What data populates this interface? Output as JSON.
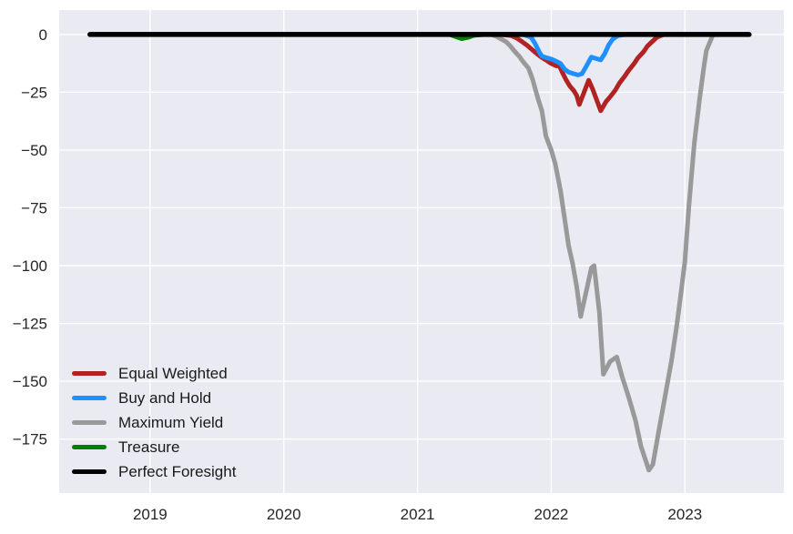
{
  "chart_data": {
    "type": "line",
    "title": "",
    "xlabel": "",
    "ylabel": "",
    "grid": true,
    "plot_bg_color": "#eaeaf2",
    "grid_color": "#ffffff",
    "tick_color": "#262626",
    "xlim": [
      2018.32,
      2023.74
    ],
    "ylim": [
      -198.4,
      10.6
    ],
    "x_ticks": {
      "values": [
        2019,
        2020,
        2021,
        2022,
        2023
      ],
      "labels": [
        "2019",
        "2020",
        "2021",
        "2022",
        "2023"
      ]
    },
    "y_ticks": {
      "values": [
        0,
        -25,
        -50,
        -75,
        -100,
        -125,
        -150,
        -175
      ],
      "labels": [
        "0",
        "−25",
        "−50",
        "−75",
        "−100",
        "−125",
        "−150",
        "−175"
      ]
    },
    "legend": {
      "position": "lower left",
      "entries": [
        "Equal Weighted",
        "Buy and Hold",
        "Maximum Yield",
        "Treasure",
        "Perfect Foresight"
      ]
    },
    "series": [
      {
        "name": "Equal Weighted",
        "color": "#b22222",
        "line_width": 5,
        "points": [
          [
            2018.55,
            0
          ],
          [
            2021.62,
            0
          ],
          [
            2021.7,
            -0.5
          ],
          [
            2021.74,
            -1.5
          ],
          [
            2021.78,
            -3
          ],
          [
            2021.82,
            -4.7
          ],
          [
            2021.86,
            -6.7
          ],
          [
            2021.9,
            -8.7
          ],
          [
            2021.93,
            -10
          ],
          [
            2021.97,
            -11.4
          ],
          [
            2022.0,
            -12.6
          ],
          [
            2022.04,
            -13.6
          ],
          [
            2022.06,
            -13.4
          ],
          [
            2022.08,
            -16
          ],
          [
            2022.11,
            -19.5
          ],
          [
            2022.14,
            -22.4
          ],
          [
            2022.17,
            -24.4
          ],
          [
            2022.19,
            -26.4
          ],
          [
            2022.21,
            -30.3
          ],
          [
            2022.28,
            -19.8
          ],
          [
            2022.31,
            -23.7
          ],
          [
            2022.37,
            -33
          ],
          [
            2022.41,
            -29
          ],
          [
            2022.44,
            -27
          ],
          [
            2022.48,
            -24
          ],
          [
            2022.51,
            -21
          ],
          [
            2022.55,
            -18
          ],
          [
            2022.58,
            -15.5
          ],
          [
            2022.62,
            -12.6
          ],
          [
            2022.65,
            -10
          ],
          [
            2022.69,
            -7.5
          ],
          [
            2022.72,
            -5
          ],
          [
            2022.76,
            -2.8
          ],
          [
            2022.79,
            -1.2
          ],
          [
            2022.84,
            0
          ],
          [
            2023.48,
            0
          ]
        ]
      },
      {
        "name": "Buy and Hold",
        "color": "#1e90ff",
        "line_width": 5,
        "points": [
          [
            2018.55,
            0
          ],
          [
            2021.79,
            0
          ],
          [
            2021.85,
            -1.2
          ],
          [
            2021.88,
            -4
          ],
          [
            2021.91,
            -7.5
          ],
          [
            2021.93,
            -9.4
          ],
          [
            2021.96,
            -10
          ],
          [
            2022.0,
            -10.6
          ],
          [
            2022.03,
            -11.4
          ],
          [
            2022.07,
            -12.6
          ],
          [
            2022.1,
            -15
          ],
          [
            2022.13,
            -16.3
          ],
          [
            2022.17,
            -17
          ],
          [
            2022.2,
            -17.5
          ],
          [
            2022.23,
            -17
          ],
          [
            2022.26,
            -14
          ],
          [
            2022.3,
            -9.8
          ],
          [
            2022.33,
            -10.3
          ],
          [
            2022.37,
            -11
          ],
          [
            2022.4,
            -8.3
          ],
          [
            2022.43,
            -4.5
          ],
          [
            2022.46,
            -2
          ],
          [
            2022.5,
            -0.5
          ],
          [
            2022.55,
            0
          ],
          [
            2023.48,
            0
          ]
        ]
      },
      {
        "name": "Maximum Yield",
        "color": "#999999",
        "line_width": 5,
        "points": [
          [
            2018.55,
            0
          ],
          [
            2021.55,
            0
          ],
          [
            2021.59,
            -0.8
          ],
          [
            2021.62,
            -1.8
          ],
          [
            2021.66,
            -3
          ],
          [
            2021.69,
            -4.7
          ],
          [
            2021.73,
            -7.5
          ],
          [
            2021.76,
            -9.4
          ],
          [
            2021.79,
            -11.8
          ],
          [
            2021.83,
            -14.6
          ],
          [
            2021.86,
            -19.3
          ],
          [
            2021.9,
            -27.6
          ],
          [
            2021.93,
            -33
          ],
          [
            2021.96,
            -44
          ],
          [
            2022.0,
            -50
          ],
          [
            2022.03,
            -56
          ],
          [
            2022.07,
            -67.7
          ],
          [
            2022.1,
            -79.5
          ],
          [
            2022.13,
            -91.3
          ],
          [
            2022.16,
            -99.2
          ],
          [
            2022.19,
            -109
          ],
          [
            2022.22,
            -122
          ],
          [
            2022.27,
            -109
          ],
          [
            2022.3,
            -101
          ],
          [
            2022.32,
            -100
          ],
          [
            2022.36,
            -120
          ],
          [
            2022.39,
            -147
          ],
          [
            2022.44,
            -141.5
          ],
          [
            2022.49,
            -139.5
          ],
          [
            2022.53,
            -148
          ],
          [
            2022.58,
            -157
          ],
          [
            2022.63,
            -167
          ],
          [
            2022.67,
            -178
          ],
          [
            2022.73,
            -188.5
          ],
          [
            2022.76,
            -186
          ],
          [
            2022.8,
            -173
          ],
          [
            2022.85,
            -157
          ],
          [
            2022.9,
            -141
          ],
          [
            2022.94,
            -125.5
          ],
          [
            2022.97,
            -112
          ],
          [
            2023.0,
            -98
          ],
          [
            2023.03,
            -74
          ],
          [
            2023.07,
            -47
          ],
          [
            2023.11,
            -27.6
          ],
          [
            2023.14,
            -14.6
          ],
          [
            2023.16,
            -7
          ],
          [
            2023.21,
            0
          ],
          [
            2023.48,
            0
          ]
        ]
      },
      {
        "name": "Treasure",
        "color": "#008000",
        "line_width": 5,
        "points": [
          [
            2018.55,
            0
          ],
          [
            2021.24,
            0
          ],
          [
            2021.29,
            -1
          ],
          [
            2021.33,
            -1.8
          ],
          [
            2021.38,
            -1.2
          ],
          [
            2021.42,
            -0.4
          ],
          [
            2021.5,
            0
          ],
          [
            2023.48,
            0
          ]
        ]
      },
      {
        "name": "Perfect Foresight",
        "color": "#000000",
        "line_width": 5.5,
        "points": [
          [
            2018.55,
            0
          ],
          [
            2023.48,
            0
          ]
        ]
      }
    ]
  }
}
